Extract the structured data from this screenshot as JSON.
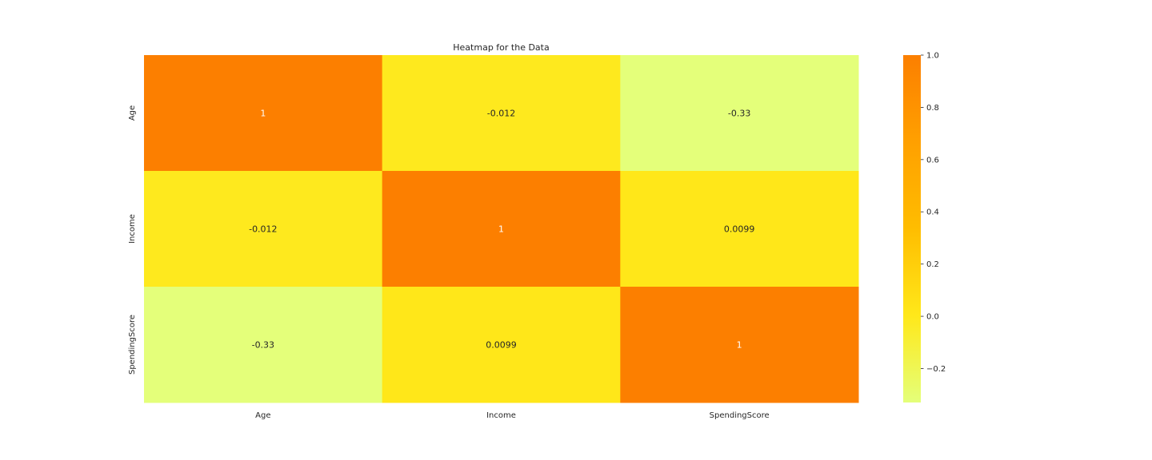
{
  "chart_data": {
    "type": "heatmap",
    "title": "Heatmap for the Data",
    "xlabel": "",
    "ylabel": "",
    "x_categories": [
      "Age",
      "Income",
      "SpendingScore"
    ],
    "y_categories": [
      "Age",
      "Income",
      "SpendingScore"
    ],
    "values": [
      [
        1,
        -0.012,
        -0.33
      ],
      [
        -0.012,
        1,
        0.0099
      ],
      [
        -0.33,
        0.0099,
        1
      ]
    ],
    "annotations": [
      [
        "1",
        "-0.012",
        "-0.33"
      ],
      [
        "-0.012",
        "1",
        "0.0099"
      ],
      [
        "-0.33",
        "0.0099",
        "1"
      ]
    ],
    "colormap": "Wistia",
    "colorbar": {
      "range": [
        -0.33,
        1.0
      ],
      "ticks": [
        -0.2,
        0.0,
        0.2,
        0.4,
        0.6,
        0.8,
        1.0
      ],
      "tick_labels": [
        "−0.2",
        "0.0",
        "0.2",
        "0.4",
        "0.6",
        "0.8",
        "1.0"
      ],
      "stops": [
        "#e4ff7a",
        "#ffe81a",
        "#ffbd00",
        "#ffa000",
        "#fc7f00"
      ]
    }
  }
}
